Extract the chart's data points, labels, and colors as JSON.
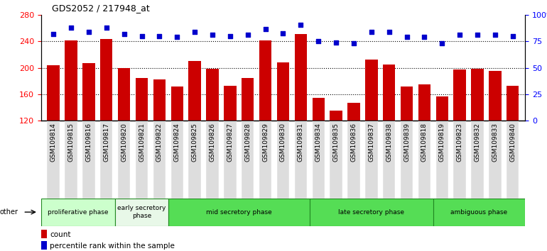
{
  "title": "GDS2052 / 217948_at",
  "samples": [
    "GSM109814",
    "GSM109815",
    "GSM109816",
    "GSM109817",
    "GSM109820",
    "GSM109821",
    "GSM109822",
    "GSM109824",
    "GSM109825",
    "GSM109826",
    "GSM109827",
    "GSM109828",
    "GSM109829",
    "GSM109830",
    "GSM109831",
    "GSM109834",
    "GSM109835",
    "GSM109836",
    "GSM109837",
    "GSM109838",
    "GSM109839",
    "GSM109818",
    "GSM109819",
    "GSM109823",
    "GSM109832",
    "GSM109833",
    "GSM109840"
  ],
  "counts": [
    204,
    242,
    207,
    244,
    200,
    185,
    182,
    172,
    210,
    198,
    173,
    185,
    241,
    208,
    251,
    154,
    135,
    147,
    212,
    205,
    172,
    175,
    157,
    197,
    198,
    195,
    173
  ],
  "percentiles": [
    82,
    88,
    84,
    88,
    82,
    80,
    80,
    79,
    84,
    81,
    80,
    81,
    87,
    83,
    91,
    75,
    74,
    73,
    84,
    84,
    79,
    79,
    73,
    81,
    81,
    81,
    80
  ],
  "phases": [
    {
      "name": "proliferative phase",
      "start": 0,
      "end": 4
    },
    {
      "name": "early secretory\nphase",
      "start": 4,
      "end": 7
    },
    {
      "name": "mid secretory phase",
      "start": 7,
      "end": 15
    },
    {
      "name": "late secretory phase",
      "start": 15,
      "end": 22
    },
    {
      "name": "ambiguous phase",
      "start": 22,
      "end": 27
    }
  ],
  "phase_colors": [
    "#ccffcc",
    "#e8f8e8",
    "#55dd55",
    "#55dd55",
    "#55dd55"
  ],
  "bar_color": "#cc0000",
  "dot_color": "#0000cc",
  "ylim_left": [
    120,
    280
  ],
  "ylim_right": [
    0,
    100
  ],
  "yticks_left": [
    120,
    160,
    200,
    240,
    280
  ],
  "yticks_right": [
    0,
    25,
    50,
    75,
    100
  ],
  "ytick_labels_right": [
    "0",
    "25",
    "50",
    "75",
    "100%"
  ],
  "grid_values": [
    160,
    200,
    240
  ],
  "tick_bg_color": "#dddddd",
  "phase_border_color": "#228822"
}
